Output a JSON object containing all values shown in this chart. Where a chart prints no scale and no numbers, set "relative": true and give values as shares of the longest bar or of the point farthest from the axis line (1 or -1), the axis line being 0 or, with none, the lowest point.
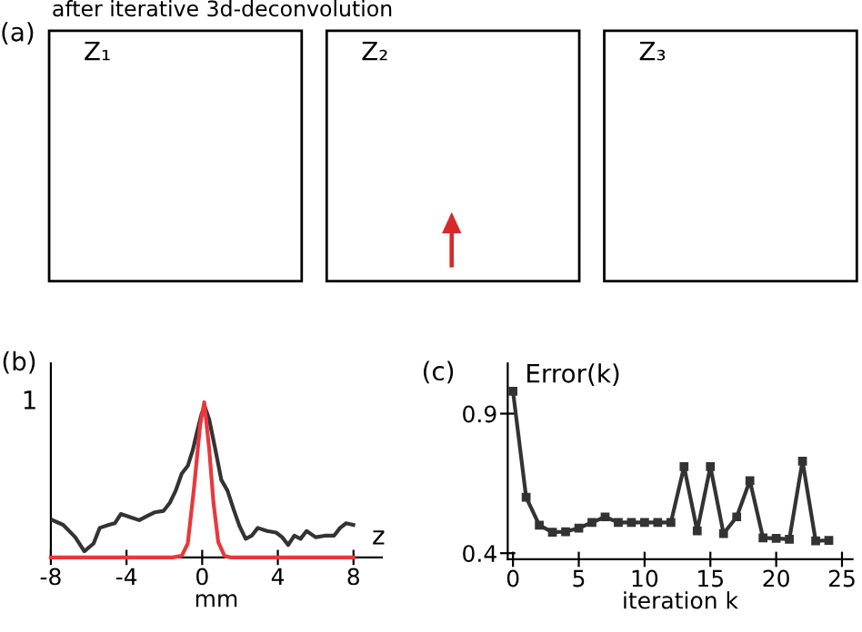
{
  "chart_data": [
    {
      "type": "other",
      "title": "after iterative 3d-deconvolution",
      "annotations": [
        "(a)",
        "Z₁",
        "Z₂",
        "Z₃"
      ]
    },
    {
      "type": "line",
      "relative": true,
      "xlim": [
        -8,
        9.5
      ],
      "xticks": [
        -8,
        -4,
        0,
        4,
        8
      ],
      "xlabel": "mm",
      "annotations": [
        "(b)",
        "z",
        "1"
      ],
      "series": [
        {
          "color": "#333333",
          "x": [
            -7.9,
            -7.35,
            -6.71,
            -6.23,
            -5.74,
            -5.42,
            -4.94,
            -4.62,
            -4.3,
            -3.81,
            -3.33,
            -2.85,
            -2.53,
            -2.04,
            -1.72,
            -1.4,
            -1.08,
            -0.76,
            -0.5,
            -0.27,
            -0.02,
            0.14,
            0.37,
            0.69,
            1.01,
            1.34,
            1.66,
            1.98,
            2.3,
            2.62,
            2.94,
            3.43,
            3.91,
            4.23,
            4.55,
            4.87,
            5.2,
            5.52,
            6.0,
            6.48,
            6.97,
            7.29,
            7.61,
            7.99
          ],
          "values": [
            0.24,
            0.21,
            0.13,
            0.04,
            0.09,
            0.19,
            0.21,
            0.22,
            0.28,
            0.26,
            0.24,
            0.27,
            0.29,
            0.3,
            0.35,
            0.43,
            0.54,
            0.59,
            0.69,
            0.81,
            0.93,
            0.97,
            0.89,
            0.7,
            0.5,
            0.43,
            0.31,
            0.2,
            0.12,
            0.14,
            0.19,
            0.17,
            0.16,
            0.13,
            0.08,
            0.14,
            0.12,
            0.17,
            0.13,
            0.14,
            0.14,
            0.19,
            0.22,
            0.21
          ]
        },
        {
          "color": "#e8383d",
          "x": [
            -8,
            -1.56,
            -1.08,
            -0.76,
            -0.43,
            -0.11,
            0.11,
            0.37,
            0.6,
            0.85,
            1.18,
            1.5,
            8
          ],
          "values": [
            0,
            0,
            0.01,
            0.09,
            0.45,
            0.85,
            1,
            0.7,
            0.35,
            0.1,
            0.01,
            0,
            0
          ]
        }
      ]
    },
    {
      "type": "line",
      "marker": "square",
      "xlim": [
        -0.4,
        25.8
      ],
      "ylim": [
        0.378,
        1.08
      ],
      "xticks": [
        0,
        5,
        10,
        15,
        20,
        25
      ],
      "yticks": [
        0.4,
        0.9
      ],
      "xlabel": "iteration k",
      "ylabel": "Error(k)",
      "annotations": [
        "(c)"
      ],
      "series": [
        {
          "color": "#333333",
          "x": [
            0,
            1,
            2,
            3,
            4,
            5,
            6,
            7,
            8,
            9,
            10,
            11,
            12,
            13,
            14,
            15,
            16,
            17,
            18,
            19,
            20,
            21,
            22,
            23,
            24
          ],
          "values": [
            0.98,
            0.6,
            0.5,
            0.475,
            0.477,
            0.49,
            0.51,
            0.53,
            0.51,
            0.51,
            0.51,
            0.51,
            0.51,
            0.71,
            0.48,
            0.71,
            0.47,
            0.53,
            0.66,
            0.455,
            0.453,
            0.45,
            0.73,
            0.444,
            0.446
          ]
        }
      ]
    }
  ]
}
